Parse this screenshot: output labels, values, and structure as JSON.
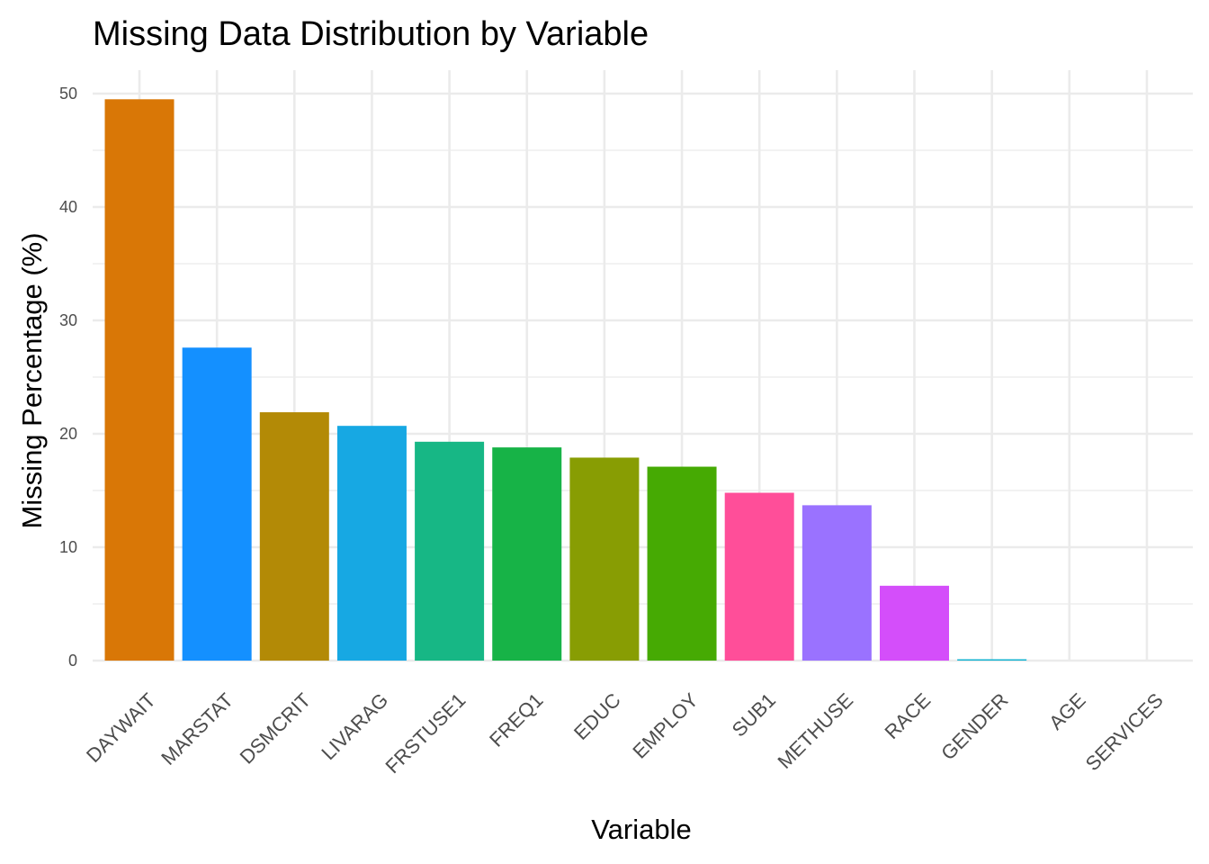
{
  "chart_data": {
    "type": "bar",
    "title": "Missing Data Distribution by Variable",
    "xlabel": "Variable",
    "ylabel": "Missing Percentage (%)",
    "categories": [
      "DAYWAIT",
      "MARSTAT",
      "DSMCRIT",
      "LIVARAG",
      "FRSTUSE1",
      "FREQ1",
      "EDUC",
      "EMPLOY",
      "SUB1",
      "METHUSE",
      "RACE",
      "GENDER",
      "AGE",
      "SERVICES"
    ],
    "values": [
      49.5,
      27.6,
      21.9,
      20.7,
      19.3,
      18.8,
      17.9,
      17.1,
      14.8,
      13.7,
      6.6,
      0.1,
      0,
      0
    ],
    "colors": [
      "#d97706",
      "#1490ff",
      "#b38a06",
      "#17a8e3",
      "#17b785",
      "#17b347",
      "#889d03",
      "#46aa03",
      "#ff4e99",
      "#9a72ff",
      "#d44efa",
      "#12b3d1",
      "#ff4fc2",
      "#ff6a6a"
    ],
    "ylim": [
      0,
      52
    ],
    "yticks": [
      0,
      10,
      20,
      30,
      40,
      50
    ],
    "grid": true,
    "legend": "none"
  }
}
